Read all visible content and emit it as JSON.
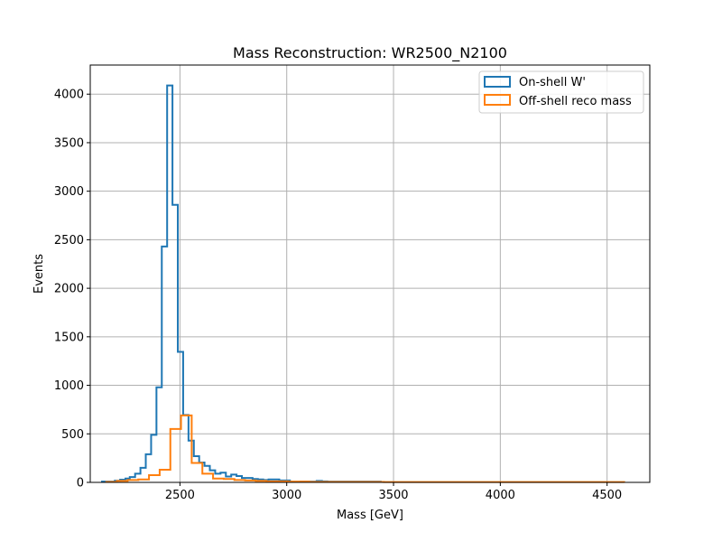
{
  "chart_data": {
    "type": "bar",
    "title": "Mass Reconstruction: WR2500_N2100",
    "xlabel": "Mass [GeV]",
    "ylabel": "Events",
    "xlim": [
      2080,
      4700
    ],
    "ylim": [
      0,
      4300
    ],
    "xticks": [
      2500,
      3000,
      3500,
      4000,
      4500
    ],
    "yticks": [
      0,
      500,
      1000,
      1500,
      2000,
      2500,
      3000,
      3500,
      4000
    ],
    "grid": true,
    "legend_position": "top-right",
    "series": [
      {
        "name": "On-shell W'",
        "color": "#1f77b4",
        "edges": [
          2135,
          2195,
          2220,
          2245,
          2265,
          2290,
          2315,
          2340,
          2365,
          2390,
          2415,
          2440,
          2465,
          2490,
          2515,
          2540,
          2565,
          2590,
          2615,
          2640,
          2665,
          2690,
          2715,
          2740,
          2765,
          2790,
          2815,
          2840,
          2865,
          2890,
          2915,
          2965,
          3015,
          3065,
          3140,
          3165,
          3190,
          3440
        ],
        "values": [
          8,
          18,
          28,
          40,
          55,
          90,
          150,
          290,
          490,
          980,
          2430,
          4090,
          2860,
          1345,
          695,
          430,
          270,
          205,
          170,
          125,
          90,
          100,
          60,
          80,
          65,
          45,
          45,
          35,
          30,
          25,
          30,
          20,
          5,
          8,
          15,
          10,
          8
        ]
      },
      {
        "name": "Off-shell reco mass",
        "color": "#ff7f0e",
        "edges": [
          2155,
          2205,
          2255,
          2305,
          2355,
          2405,
          2455,
          2505,
          2555,
          2605,
          2655,
          2705,
          2755,
          2805,
          2855,
          2905,
          3005,
          3105,
          3205,
          3305,
          3455,
          4580
        ],
        "values": [
          5,
          15,
          25,
          30,
          75,
          130,
          550,
          690,
          200,
          90,
          40,
          35,
          25,
          20,
          15,
          10,
          8,
          5,
          5,
          5,
          3
        ]
      }
    ]
  }
}
